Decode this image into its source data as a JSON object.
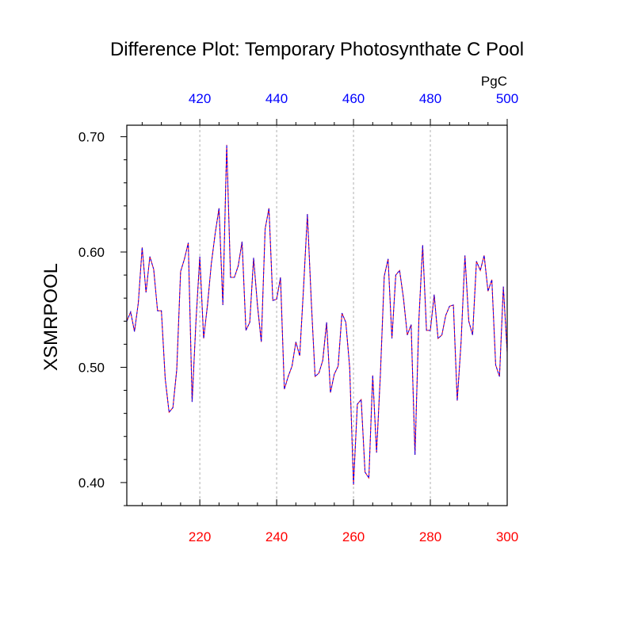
{
  "chart_data": {
    "type": "line",
    "title": "Difference Plot: Temporary Photosynthate C Pool",
    "units": "PgC",
    "ylabel": "XSMRPOOL",
    "xlabel": "",
    "ylim": [
      0.38,
      0.71
    ],
    "yticks": [
      0.4,
      0.5,
      0.6,
      0.7
    ],
    "ytick_labels": [
      "0.40",
      "0.50",
      "0.60",
      "0.70"
    ],
    "x_bottom": {
      "range": [
        201,
        300
      ],
      "ticks": [
        220,
        240,
        260,
        280,
        300
      ],
      "tick_labels": [
        "220",
        "240",
        "260",
        "280",
        "300"
      ],
      "color": "#ff0000"
    },
    "x_top": {
      "range": [
        401,
        500
      ],
      "ticks": [
        420,
        440,
        460,
        480,
        500
      ],
      "tick_labels": [
        "420",
        "440",
        "460",
        "480",
        "500"
      ],
      "color": "#0000ff"
    },
    "grid": "vertical dashed at major x ticks",
    "series": [
      {
        "color": "#ff0000",
        "line_style": "solid",
        "x_axis": "bottom",
        "x": [
          201,
          202,
          203,
          204,
          205,
          206,
          207,
          208,
          209,
          210,
          211,
          212,
          213,
          214,
          215,
          216,
          217,
          218,
          219,
          220,
          221,
          222,
          223,
          224,
          225,
          226,
          227,
          228,
          229,
          230,
          231,
          232,
          233,
          234,
          235,
          236,
          237,
          238,
          239,
          240,
          241,
          242,
          243,
          244,
          245,
          246,
          247,
          248,
          249,
          250,
          251,
          252,
          253,
          254,
          255,
          256,
          257,
          258,
          259,
          260,
          261,
          262,
          263,
          264,
          265,
          266,
          267,
          268,
          269,
          270,
          271,
          272,
          273,
          274,
          275,
          276,
          277,
          278,
          279,
          280,
          281,
          282,
          283,
          284,
          285,
          286,
          287,
          288,
          289,
          290,
          291,
          292,
          293,
          294,
          295,
          296,
          297,
          298,
          299,
          300
        ],
        "values": [
          0.54,
          0.548,
          0.531,
          0.556,
          0.604,
          0.565,
          0.596,
          0.585,
          0.549,
          0.549,
          0.49,
          0.461,
          0.465,
          0.498,
          0.583,
          0.594,
          0.608,
          0.47,
          0.54,
          0.596,
          0.525,
          0.554,
          0.59,
          0.616,
          0.638,
          0.554,
          0.693,
          0.578,
          0.578,
          0.588,
          0.609,
          0.532,
          0.539,
          0.595,
          0.554,
          0.522,
          0.62,
          0.638,
          0.558,
          0.559,
          0.578,
          0.481,
          0.492,
          0.501,
          0.522,
          0.51,
          0.569,
          0.633,
          0.558,
          0.492,
          0.495,
          0.506,
          0.539,
          0.478,
          0.494,
          0.501,
          0.547,
          0.539,
          0.5,
          0.398,
          0.468,
          0.472,
          0.409,
          0.404,
          0.493,
          0.426,
          0.494,
          0.579,
          0.594,
          0.525,
          0.58,
          0.584,
          0.56,
          0.528,
          0.537,
          0.424,
          0.54,
          0.606,
          0.532,
          0.532,
          0.563,
          0.525,
          0.528,
          0.545,
          0.553,
          0.554,
          0.471,
          0.522,
          0.597,
          0.54,
          0.528,
          0.592,
          0.584,
          0.597,
          0.566,
          0.576,
          0.502,
          0.492,
          0.57,
          0.513
        ]
      },
      {
        "color": "#0000ff",
        "line_style": "dashed",
        "x_axis": "top",
        "x": [
          401,
          402,
          403,
          404,
          405,
          406,
          407,
          408,
          409,
          410,
          411,
          412,
          413,
          414,
          415,
          416,
          417,
          418,
          419,
          420,
          421,
          422,
          423,
          424,
          425,
          426,
          427,
          428,
          429,
          430,
          431,
          432,
          433,
          434,
          435,
          436,
          437,
          438,
          439,
          440,
          441,
          442,
          443,
          444,
          445,
          446,
          447,
          448,
          449,
          450,
          451,
          452,
          453,
          454,
          455,
          456,
          457,
          458,
          459,
          460,
          461,
          462,
          463,
          464,
          465,
          466,
          467,
          468,
          469,
          470,
          471,
          472,
          473,
          474,
          475,
          476,
          477,
          478,
          479,
          480,
          481,
          482,
          483,
          484,
          485,
          486,
          487,
          488,
          489,
          490,
          491,
          492,
          493,
          494,
          495,
          496,
          497,
          498,
          499,
          500
        ],
        "values": [
          0.54,
          0.548,
          0.531,
          0.556,
          0.604,
          0.565,
          0.596,
          0.585,
          0.549,
          0.549,
          0.49,
          0.461,
          0.465,
          0.498,
          0.583,
          0.594,
          0.608,
          0.47,
          0.54,
          0.596,
          0.525,
          0.554,
          0.59,
          0.616,
          0.638,
          0.554,
          0.693,
          0.578,
          0.578,
          0.588,
          0.609,
          0.532,
          0.539,
          0.595,
          0.554,
          0.522,
          0.62,
          0.638,
          0.558,
          0.559,
          0.578,
          0.481,
          0.492,
          0.501,
          0.522,
          0.51,
          0.569,
          0.633,
          0.558,
          0.492,
          0.495,
          0.506,
          0.539,
          0.478,
          0.494,
          0.501,
          0.547,
          0.539,
          0.5,
          0.398,
          0.468,
          0.472,
          0.409,
          0.404,
          0.493,
          0.426,
          0.494,
          0.579,
          0.594,
          0.525,
          0.58,
          0.584,
          0.56,
          0.528,
          0.537,
          0.424,
          0.54,
          0.606,
          0.532,
          0.532,
          0.563,
          0.525,
          0.528,
          0.545,
          0.553,
          0.554,
          0.471,
          0.522,
          0.597,
          0.54,
          0.528,
          0.592,
          0.584,
          0.597,
          0.566,
          0.576,
          0.502,
          0.492,
          0.57,
          0.513
        ]
      }
    ]
  }
}
